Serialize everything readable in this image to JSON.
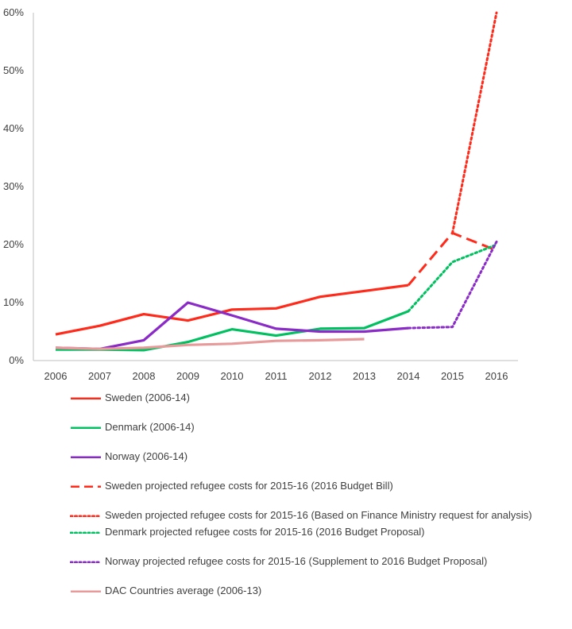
{
  "chart_data": {
    "type": "line",
    "x": [
      "2006",
      "2007",
      "2008",
      "2009",
      "2010",
      "2011",
      "2012",
      "2013",
      "2014",
      "2015",
      "2016"
    ],
    "ylim": [
      0,
      60
    ],
    "yticks": [
      "0%",
      "10%",
      "20%",
      "30%",
      "40%",
      "50%",
      "60%"
    ],
    "grid": false,
    "legend_position": "bottom",
    "series": [
      {
        "name": "Sweden (2006-14)",
        "color": "#ff2a1a",
        "style": "solid",
        "points": [
          [
            "2006",
            4.5
          ],
          [
            "2007",
            6
          ],
          [
            "2008",
            8
          ],
          [
            "2009",
            6.9
          ],
          [
            "2010",
            8.8
          ],
          [
            "2011",
            9
          ],
          [
            "2012",
            11
          ],
          [
            "2013",
            12
          ],
          [
            "2014",
            13
          ]
        ]
      },
      {
        "name": "Denmark (2006-14)",
        "color": "#00c060",
        "style": "solid",
        "points": [
          [
            "2006",
            1.9
          ],
          [
            "2007",
            1.9
          ],
          [
            "2008",
            1.8
          ],
          [
            "2009",
            3.2
          ],
          [
            "2010",
            5.4
          ],
          [
            "2011",
            4.3
          ],
          [
            "2012",
            5.5
          ],
          [
            "2013",
            5.6
          ],
          [
            "2014",
            8.5
          ]
        ]
      },
      {
        "name": "Norway (2006-14)",
        "color": "#8a2bc8",
        "style": "solid",
        "points": [
          [
            "2006",
            2.2
          ],
          [
            "2007",
            2
          ],
          [
            "2008",
            3.5
          ],
          [
            "2009",
            10
          ],
          [
            "2010",
            7.8
          ],
          [
            "2011",
            5.5
          ],
          [
            "2012",
            5
          ],
          [
            "2013",
            5
          ],
          [
            "2014",
            5.6
          ]
        ]
      },
      {
        "name": "Sweden projected refugee costs for 2015-16 (2016 Budget Bill)",
        "color": "#ff2a1a",
        "style": "dashed",
        "points": [
          [
            "2014",
            13
          ],
          [
            "2015",
            22
          ],
          [
            "2016",
            19
          ]
        ]
      },
      {
        "name": "Sweden projected refugee costs for 2015-16 (Based on Finance Ministry request for analysis)",
        "color": "#ff2a1a",
        "style": "dotted",
        "points": [
          [
            "2015",
            22
          ],
          [
            "2016",
            60
          ]
        ]
      },
      {
        "name": "Denmark projected refugee costs for 2015-16 (2016 Budget Proposal)",
        "color": "#00c060",
        "style": "dotted",
        "points": [
          [
            "2014",
            8.5
          ],
          [
            "2015",
            17
          ],
          [
            "2016",
            20
          ]
        ]
      },
      {
        "name": "Norway projected refugee costs for 2015-16 (Supplement to 2016 Budget Proposal)",
        "color": "#8a2bc8",
        "style": "dotted",
        "points": [
          [
            "2014",
            5.6
          ],
          [
            "2015",
            5.8
          ],
          [
            "2016",
            20.5
          ]
        ]
      },
      {
        "name": "DAC Countries average (2006-13)",
        "color": "#e89a9a",
        "style": "solid",
        "points": [
          [
            "2006",
            2.2
          ],
          [
            "2007",
            2
          ],
          [
            "2008",
            2.2
          ],
          [
            "2009",
            2.7
          ],
          [
            "2010",
            2.9
          ],
          [
            "2011",
            3.4
          ],
          [
            "2012",
            3.5
          ],
          [
            "2013",
            3.7
          ]
        ]
      }
    ]
  }
}
